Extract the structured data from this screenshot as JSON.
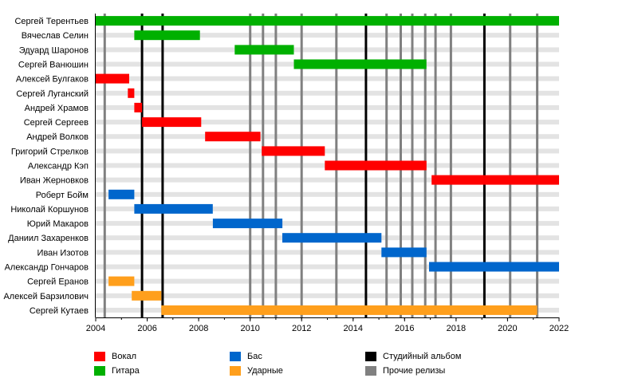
{
  "chart_data": {
    "type": "timeline",
    "x_range": [
      2004,
      2022
    ],
    "x_ticks": [
      "2004",
      "2006",
      "2008",
      "2010",
      "2012",
      "2014",
      "2016",
      "2018",
      "2020",
      "2022"
    ],
    "members": [
      {
        "name": "Сергей Терентьев",
        "start": 2004.0,
        "end": 2022.2,
        "role": "guitar"
      },
      {
        "name": "Вячеслав Селин",
        "start": 2005.5,
        "end": 2008.05,
        "role": "guitar"
      },
      {
        "name": "Эдуард Шаронов",
        "start": 2009.4,
        "end": 2011.7,
        "role": "guitar"
      },
      {
        "name": "Сергей Ванюшин",
        "start": 2011.7,
        "end": 2016.85,
        "role": "guitar"
      },
      {
        "name": "Алексей Булгаков",
        "start": 2004.0,
        "end": 2005.3,
        "role": "vocals"
      },
      {
        "name": "Сергей Луганский",
        "start": 2005.25,
        "end": 2005.5,
        "role": "vocals"
      },
      {
        "name": "Андрей Храмов",
        "start": 2005.5,
        "end": 2005.8,
        "role": "vocals"
      },
      {
        "name": "Сергей Сергеев",
        "start": 2005.8,
        "end": 2008.1,
        "role": "vocals"
      },
      {
        "name": "Андрей Волков",
        "start": 2008.25,
        "end": 2010.4,
        "role": "vocals"
      },
      {
        "name": "Григорий Стрелков",
        "start": 2010.45,
        "end": 2012.9,
        "role": "vocals"
      },
      {
        "name": "Александр Кэп",
        "start": 2012.9,
        "end": 2016.85,
        "role": "vocals"
      },
      {
        "name": "Иван Жерновков",
        "start": 2017.05,
        "end": 2022.2,
        "role": "vocals"
      },
      {
        "name": "Роберт Бойм",
        "start": 2004.5,
        "end": 2005.5,
        "role": "bass"
      },
      {
        "name": "Николай Коршунов",
        "start": 2005.5,
        "end": 2008.55,
        "role": "bass"
      },
      {
        "name": "Юрий Макаров",
        "start": 2008.55,
        "end": 2011.25,
        "role": "bass"
      },
      {
        "name": "Даниил Захаренков",
        "start": 2011.25,
        "end": 2015.1,
        "role": "bass"
      },
      {
        "name": "Иван Изотов",
        "start": 2015.1,
        "end": 2016.85,
        "role": "bass"
      },
      {
        "name": "Александр Гончаров",
        "start": 2016.95,
        "end": 2022.2,
        "role": "bass"
      },
      {
        "name": "Сергей Еранов",
        "start": 2004.5,
        "end": 2005.5,
        "role": "drums"
      },
      {
        "name": "Алексей Барзилович",
        "start": 2005.4,
        "end": 2006.55,
        "role": "drums"
      },
      {
        "name": "Сергей Кутаев",
        "start": 2006.55,
        "end": 2021.15,
        "role": "drums"
      }
    ],
    "studio_albums": [
      2005.8,
      2006.6,
      2014.5,
      2019.1
    ],
    "other_releases": [
      2004.35,
      2010.0,
      2010.5,
      2011.0,
      2012.0,
      2013.35,
      2015.3,
      2015.85,
      2016.3,
      2016.8,
      2017.2,
      2017.8,
      2020.1,
      2021.15
    ],
    "legend": [
      {
        "key": "vocals",
        "label": "Вокал",
        "color": "#ff0000"
      },
      {
        "key": "guitar",
        "label": "Гитара",
        "color": "#00b000"
      },
      {
        "key": "bass",
        "label": "Бас",
        "color": "#0066cc"
      },
      {
        "key": "drums",
        "label": "Ударные",
        "color": "#ff9f1c"
      },
      {
        "key": "studio",
        "label": "Студийный альбом",
        "color": "#000000"
      },
      {
        "key": "other",
        "label": "Прочие релизы",
        "color": "#808080"
      }
    ]
  }
}
